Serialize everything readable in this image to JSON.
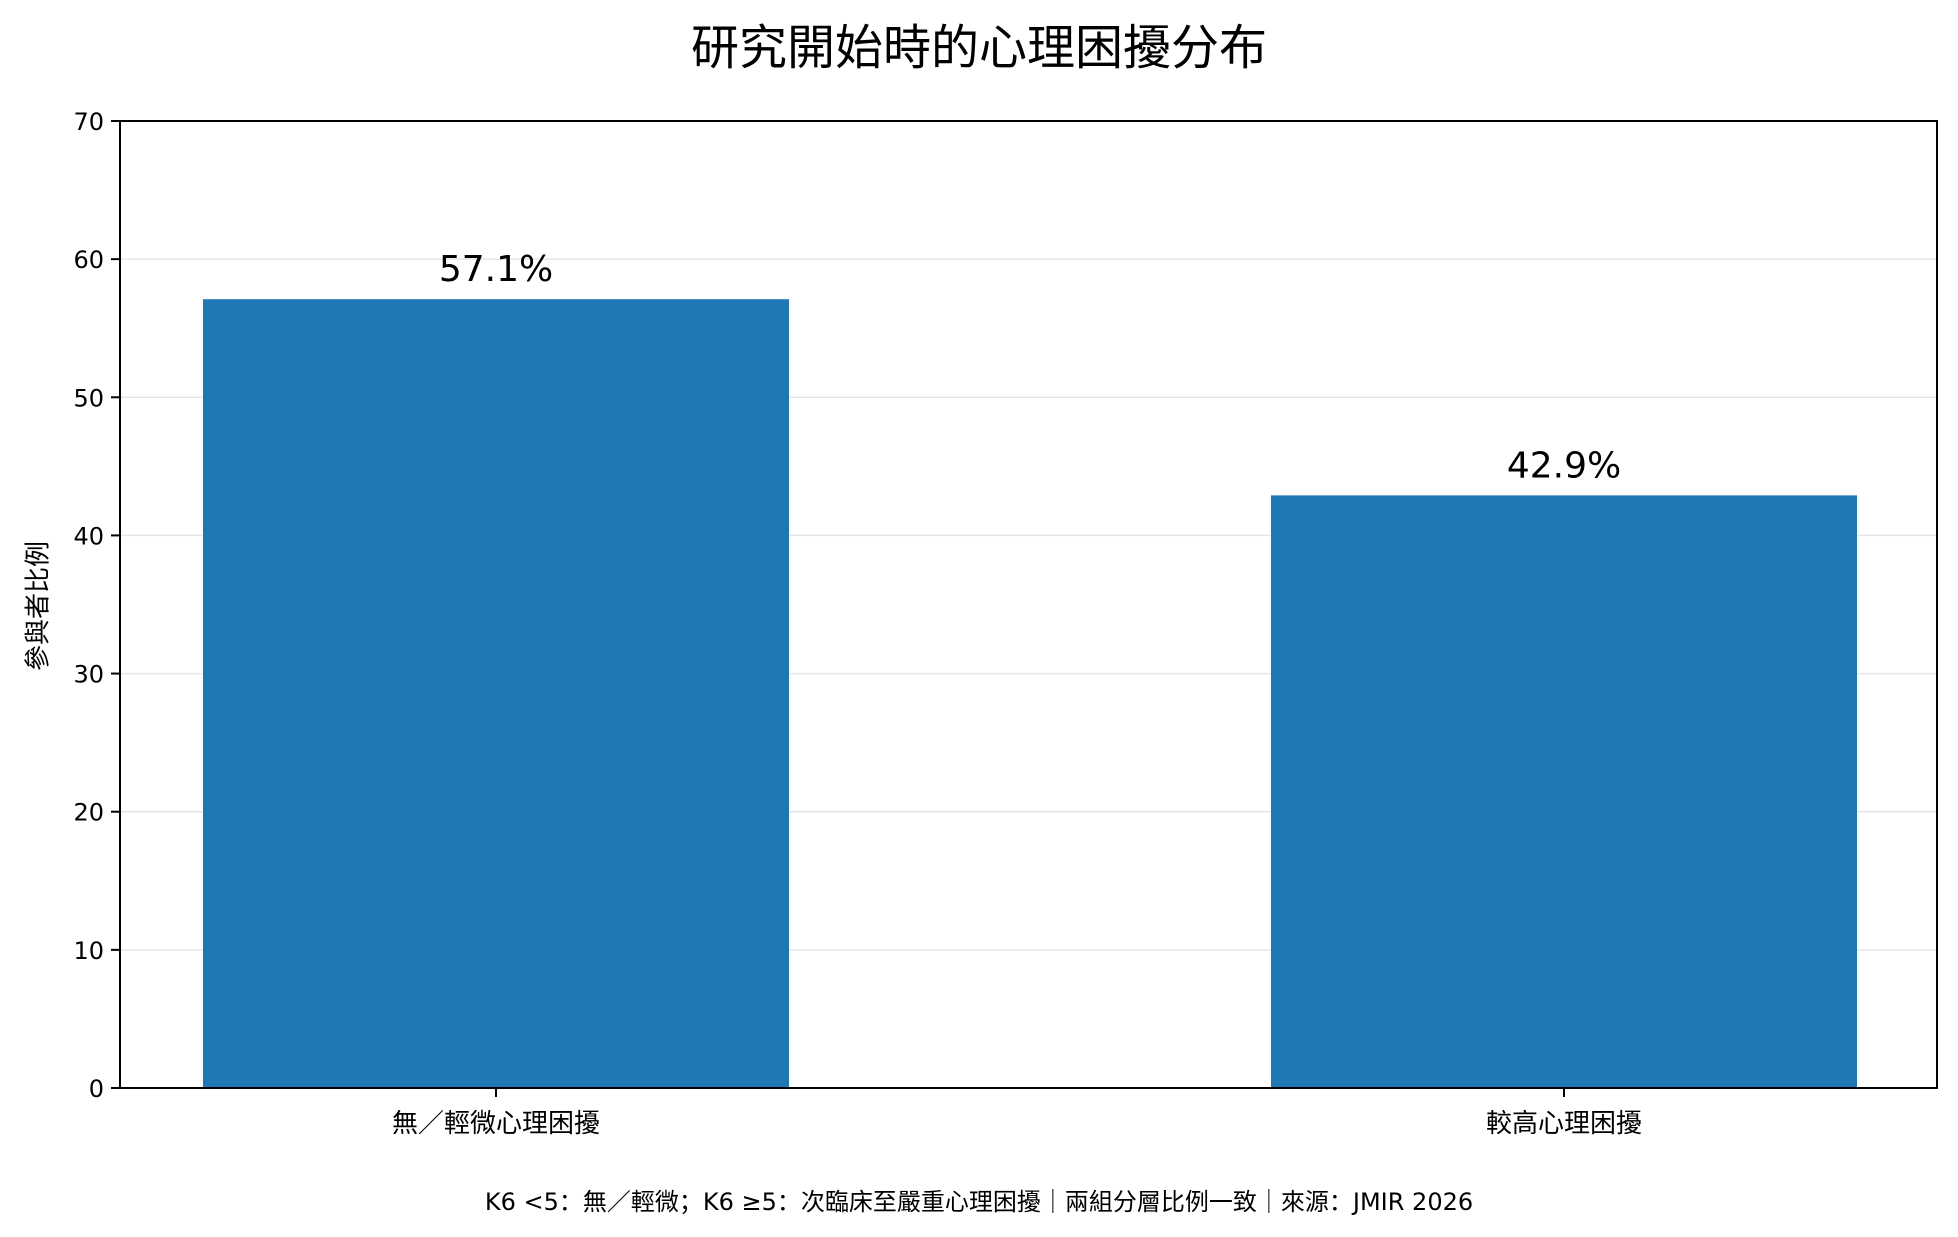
{
  "chart_data": {
    "type": "bar",
    "title": "研究開始時的心理困擾分布",
    "ylabel": "參與者比例",
    "xlabel": "",
    "categories": [
      "無／輕微心理困擾",
      "較高心理困擾"
    ],
    "values": [
      57.1,
      42.9
    ],
    "value_labels": [
      "57.1%",
      "42.9%"
    ],
    "ylim": [
      0,
      70
    ],
    "yticks": [
      0,
      10,
      20,
      30,
      40,
      50,
      60,
      70
    ],
    "grid": "horizontal",
    "bar_color": "#1f77b4",
    "footnote": "K6 <5：無／輕微；K6 ≥5：次臨床至嚴重心理困擾｜兩組分層比例一致｜來源：JMIR 2026"
  }
}
